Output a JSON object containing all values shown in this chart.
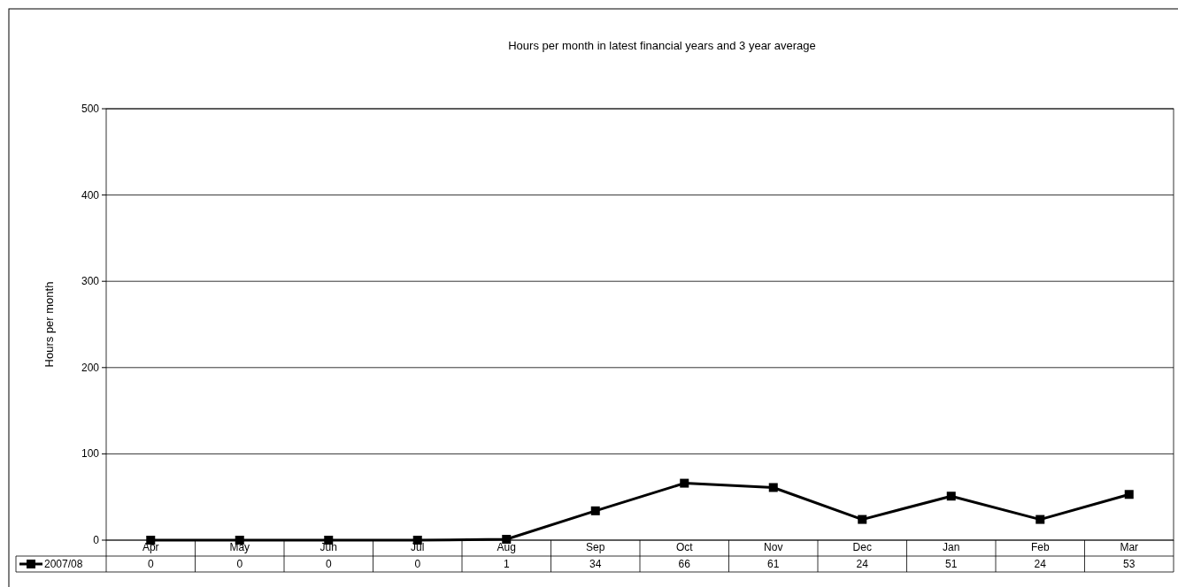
{
  "chart_data": {
    "type": "line",
    "title": "Hours per month in latest financial years and 3 year average",
    "ylabel": "Hours per month",
    "categories": [
      "Apr",
      "May",
      "Jun",
      "Jul",
      "Aug",
      "Sep",
      "Oct",
      "Nov",
      "Dec",
      "Jan",
      "Feb",
      "Mar"
    ],
    "series": [
      {
        "name": "2007/08",
        "color": "#000000",
        "values": [
          0,
          0,
          0,
          0,
          1,
          34,
          66,
          61,
          24,
          51,
          24,
          53
        ]
      }
    ],
    "ylim": [
      0,
      500
    ],
    "yticks": [
      0,
      100,
      200,
      300,
      400,
      500
    ],
    "grid": "y",
    "marker": "square",
    "line_style": "solid",
    "data_labels": true,
    "legend": "bottom left"
  }
}
